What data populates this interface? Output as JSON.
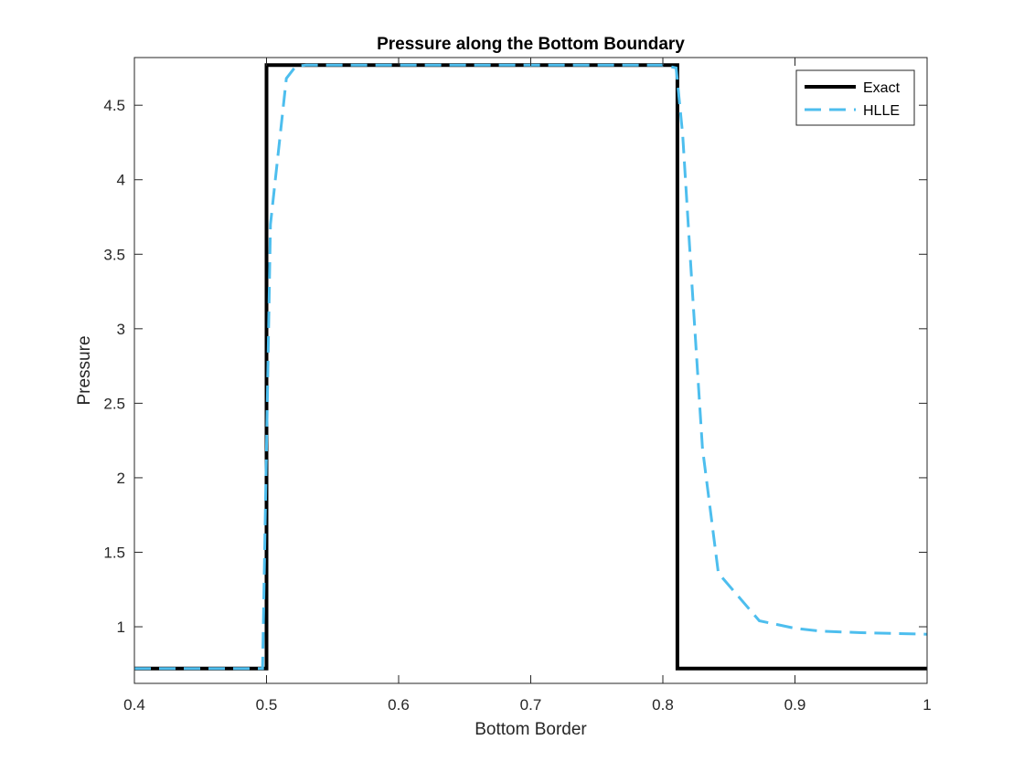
{
  "chart_data": {
    "type": "line",
    "title": "Pressure along the Bottom Boundary",
    "xlabel": "Bottom Border",
    "ylabel": "Pressure",
    "xlim": [
      0.4,
      1.0
    ],
    "ylim": [
      0.62,
      4.82
    ],
    "xticks": [
      "0.4",
      "0.5",
      "0.6",
      "0.7",
      "0.8",
      "0.9",
      "1"
    ],
    "yticks": [
      "1",
      "1.5",
      "2",
      "2.5",
      "3",
      "3.5",
      "4",
      "4.5"
    ],
    "grid": false,
    "legend_position": "top-right",
    "series": [
      {
        "name": "Exact",
        "color": "#000000",
        "style": "solid",
        "x": [
          0.4,
          0.5,
          0.5,
          0.811,
          0.811,
          1.0
        ],
        "y": [
          0.72,
          0.72,
          4.77,
          4.77,
          0.72,
          0.72
        ]
      },
      {
        "name": "HLLE",
        "color": "#4DBEEE",
        "style": "dashed",
        "x": [
          0.4,
          0.497,
          0.503,
          0.515,
          0.522,
          0.53,
          0.6,
          0.7,
          0.8,
          0.81,
          0.815,
          0.822,
          0.83,
          0.842,
          0.873,
          0.9,
          0.92,
          0.95,
          1.0
        ],
        "y": [
          0.72,
          0.72,
          3.7,
          4.68,
          4.76,
          4.77,
          4.77,
          4.77,
          4.77,
          4.75,
          4.3,
          3.3,
          2.2,
          1.36,
          1.04,
          0.99,
          0.97,
          0.96,
          0.95
        ]
      }
    ]
  }
}
